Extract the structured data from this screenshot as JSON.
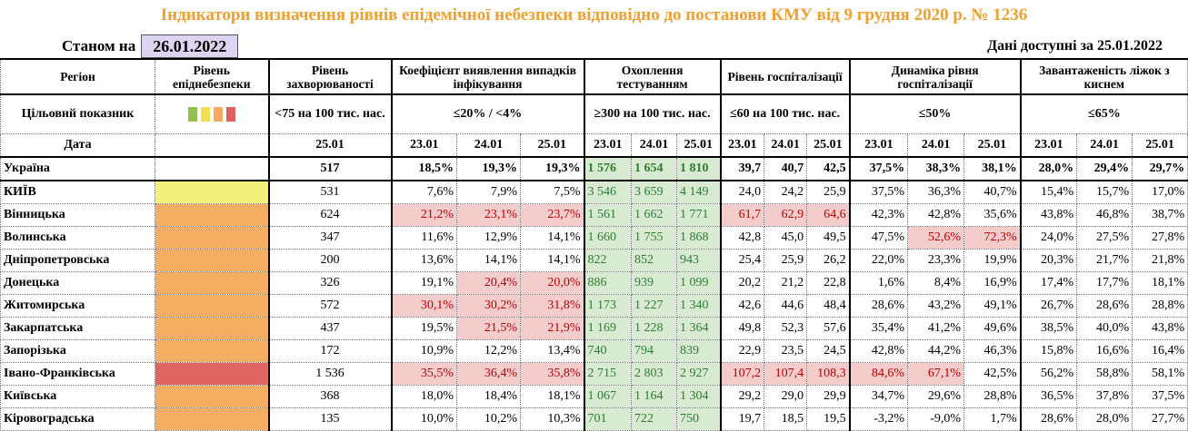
{
  "header": {
    "title": "Індикатори визначення рівнів епідемічної небезпеки відповідно до постанови КМУ від 9 грудня 2020 р. № 1236",
    "as_of_label": "Станом на",
    "as_of_date": "26.01.2022",
    "data_label": "Дані доступні за",
    "data_date": "25.01.2022"
  },
  "table": {
    "columns": [
      "Регіон",
      "Рівень епіднебезпеки",
      "Рівень захворюваності",
      "Коефіцієнт виявлення випадків інфікування",
      "Охоплення тестуванням",
      "Рівень госпіталізації",
      "Динаміка рівня госпіталізації",
      "Завантаженість ліжок з киснем"
    ],
    "target_label": "Цільовий показник",
    "targets": [
      "<75 на 100 тис. нас.",
      "≤20% / <4%",
      "≥300 на 100 тис. нас.",
      "≤60 на 100 тис. нас.",
      "≤50%",
      "≤65%"
    ],
    "level_palette": [
      "#92c050",
      "#f0e050",
      "#f4a860",
      "#e06060"
    ],
    "date_label": "Дата",
    "dates": [
      "25.01",
      "23.01",
      "24.01",
      "25.01",
      "23.01",
      "24.01",
      "25.01",
      "23.01",
      "24.01",
      "25.01",
      "23.01",
      "24.01",
      "25.01",
      "23.01",
      "24.01",
      "25.01"
    ],
    "total": {
      "region": "Україна",
      "values": [
        "517",
        "18,5%",
        "19,3%",
        "19,3%",
        "1 576",
        "1 654",
        "1 810",
        "39,7",
        "40,7",
        "42,5",
        "37,5%",
        "38,3%",
        "38,1%",
        "28,0%",
        "29,4%",
        "29,7%"
      ]
    },
    "rows": [
      {
        "region": "КИЇВ",
        "level_color": "#f2f27a",
        "values": [
          "531",
          "7,6%",
          "7,9%",
          "7,5%",
          "3 546",
          "3 659",
          "4 149",
          "24,0",
          "24,2",
          "25,9",
          "37,5%",
          "36,3%",
          "40,7%",
          "15,4%",
          "15,7%",
          "17,0%"
        ],
        "alert": []
      },
      {
        "region": "Вінницька",
        "level_color": "#f4ad62",
        "values": [
          "624",
          "21,2%",
          "23,1%",
          "23,7%",
          "1 561",
          "1 662",
          "1 771",
          "61,7",
          "62,9",
          "64,6",
          "42,3%",
          "42,8%",
          "35,6%",
          "43,8%",
          "46,8%",
          "38,7%"
        ],
        "alert": [
          1,
          2,
          3,
          7,
          8,
          9
        ]
      },
      {
        "region": "Волинська",
        "level_color": "#f4ad62",
        "values": [
          "347",
          "11,6%",
          "12,9%",
          "14,1%",
          "1 660",
          "1 755",
          "1 868",
          "42,8",
          "45,0",
          "49,5",
          "47,5%",
          "52,6%",
          "72,3%",
          "24,0%",
          "27,5%",
          "27,8%"
        ],
        "alert": [
          11,
          12
        ]
      },
      {
        "region": "Дніпропетровська",
        "level_color": "#f4ad62",
        "values": [
          "200",
          "13,6%",
          "14,1%",
          "14,1%",
          "822",
          "852",
          "943",
          "25,4",
          "25,9",
          "26,2",
          "22,0%",
          "23,3%",
          "19,9%",
          "20,3%",
          "21,7%",
          "21,8%"
        ],
        "alert": []
      },
      {
        "region": "Донецька",
        "level_color": "#f4ad62",
        "values": [
          "326",
          "19,1%",
          "20,4%",
          "20,0%",
          "886",
          "939",
          "1 099",
          "20,2",
          "21,2",
          "22,8",
          "1,6%",
          "8,4%",
          "16,9%",
          "17,4%",
          "17,7%",
          "18,1%"
        ],
        "alert": [
          2,
          3
        ]
      },
      {
        "region": "Житомирська",
        "level_color": "#f4ad62",
        "values": [
          "572",
          "30,1%",
          "30,2%",
          "31,8%",
          "1 173",
          "1 227",
          "1 340",
          "42,6",
          "44,6",
          "48,4",
          "28,6%",
          "43,2%",
          "49,1%",
          "26,7%",
          "28,6%",
          "28,8%"
        ],
        "alert": [
          1,
          2,
          3
        ]
      },
      {
        "region": "Закарпатська",
        "level_color": "#f4ad62",
        "values": [
          "437",
          "19,5%",
          "21,5%",
          "21,9%",
          "1 169",
          "1 228",
          "1 364",
          "49,8",
          "52,3",
          "57,6",
          "35,4%",
          "41,2%",
          "49,6%",
          "38,5%",
          "40,0%",
          "43,8%"
        ],
        "alert": [
          2,
          3
        ]
      },
      {
        "region": "Запорізька",
        "level_color": "#f4ad62",
        "values": [
          "172",
          "10,9%",
          "12,2%",
          "13,4%",
          "740",
          "794",
          "839",
          "22,9",
          "23,5",
          "24,5",
          "42,8%",
          "44,2%",
          "46,3%",
          "15,8%",
          "16,6%",
          "16,4%"
        ],
        "alert": []
      },
      {
        "region": "Івано-Франківська",
        "level_color": "#e06666",
        "values": [
          "1 536",
          "35,5%",
          "36,4%",
          "35,8%",
          "2 715",
          "2 803",
          "2 927",
          "107,2",
          "107,4",
          "108,3",
          "84,6%",
          "67,1%",
          "42,5%",
          "56,2%",
          "58,8%",
          "58,1%"
        ],
        "alert": [
          1,
          2,
          3,
          7,
          8,
          9,
          10,
          11
        ]
      },
      {
        "region": "Київська",
        "level_color": "#f4ad62",
        "values": [
          "368",
          "18,0%",
          "18,4%",
          "18,1%",
          "1 067",
          "1 164",
          "1 304",
          "29,2",
          "29,0",
          "29,9",
          "34,7%",
          "29,6%",
          "28,8%",
          "36,5%",
          "37,8%",
          "37,5%"
        ],
        "alert": []
      },
      {
        "region": "Кіровоградська",
        "level_color": "#f4ad62",
        "values": [
          "135",
          "10,0%",
          "10,2%",
          "10,3%",
          "701",
          "722",
          "750",
          "19,7",
          "18,5",
          "19,5",
          "-3,2%",
          "-9,0%",
          "1,7%",
          "28,6%",
          "28,0%",
          "27,7%"
        ],
        "alert": []
      }
    ]
  }
}
